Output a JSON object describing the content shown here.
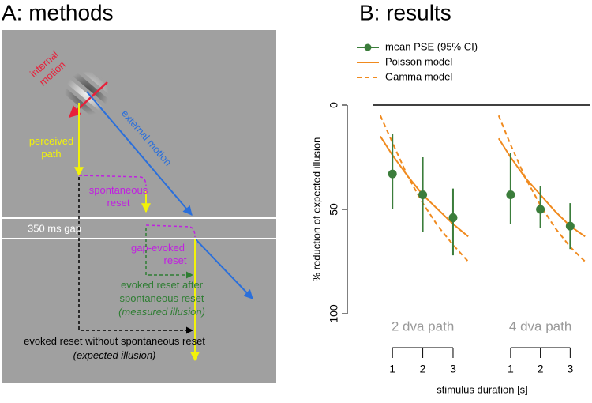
{
  "diagram": {
    "title": "A: methods",
    "internal_motion": [
      "internal",
      "motion"
    ],
    "external_motion": "external motion",
    "perceived_path": [
      "perceived",
      "path"
    ],
    "spontaneous_reset": [
      "spontaneous",
      "reset"
    ],
    "gap": "350 ms gap",
    "gap_evoked_reset": [
      "gap-evoked",
      "reset"
    ],
    "evoked_after": [
      "evoked reset after",
      "spontaneous reset",
      "(measured illusion)"
    ],
    "evoked_without": [
      "evoked reset without spontaneous reset",
      "(expected illusion)"
    ]
  },
  "chart_data": {
    "type": "errorbar",
    "title": "B: results",
    "ylabel": "% reduction of expected illusion",
    "xlabel": "stimulus duration [s]",
    "ylim": [
      100,
      0
    ],
    "yticks": [
      0,
      50,
      100
    ],
    "zero_line": true,
    "xlim": [
      0.5,
      3.6
    ],
    "xticks": [
      1,
      2,
      3
    ],
    "groups": [
      "2 dva path",
      "4 dva path"
    ],
    "series": [
      {
        "name": "mean PSE (95% CI)",
        "color": "#3b7d3b",
        "style": "points",
        "groups": [
          {
            "x": [
              1,
              2,
              3
            ],
            "values": [
              33,
              43,
              54
            ],
            "lower": [
              14,
              25,
              40
            ],
            "upper": [
              50,
              61,
              72
            ]
          },
          {
            "x": [
              1,
              2,
              3
            ],
            "values": [
              43,
              50,
              58
            ],
            "lower": [
              23,
              39,
              47
            ],
            "upper": [
              57,
              59,
              69
            ]
          }
        ]
      },
      {
        "name": "Poisson model",
        "color": "#f08a1e",
        "style": "solid",
        "groups": [
          {
            "x": [
              0.6,
              1,
              1.5,
              2,
              2.5,
              3,
              3.5
            ],
            "values": [
              15,
              24,
              34,
              43,
              50,
              57,
              63
            ]
          },
          {
            "x": [
              0.6,
              1,
              1.5,
              2,
              2.5,
              3,
              3.5
            ],
            "values": [
              16,
              25,
              35,
              43,
              51,
              58,
              63
            ]
          }
        ]
      },
      {
        "name": "Gamma model",
        "color": "#f08a1e",
        "style": "dashed",
        "groups": [
          {
            "x": [
              0.6,
              1,
              1.5,
              2,
              2.5,
              3,
              3.5
            ],
            "values": [
              5,
              18,
              34,
              47,
              58,
              67,
              75
            ]
          },
          {
            "x": [
              0.6,
              1,
              1.5,
              2,
              2.5,
              3,
              3.5
            ],
            "values": [
              5,
              19,
              35,
              48,
              59,
              68,
              75
            ]
          }
        ]
      }
    ]
  }
}
